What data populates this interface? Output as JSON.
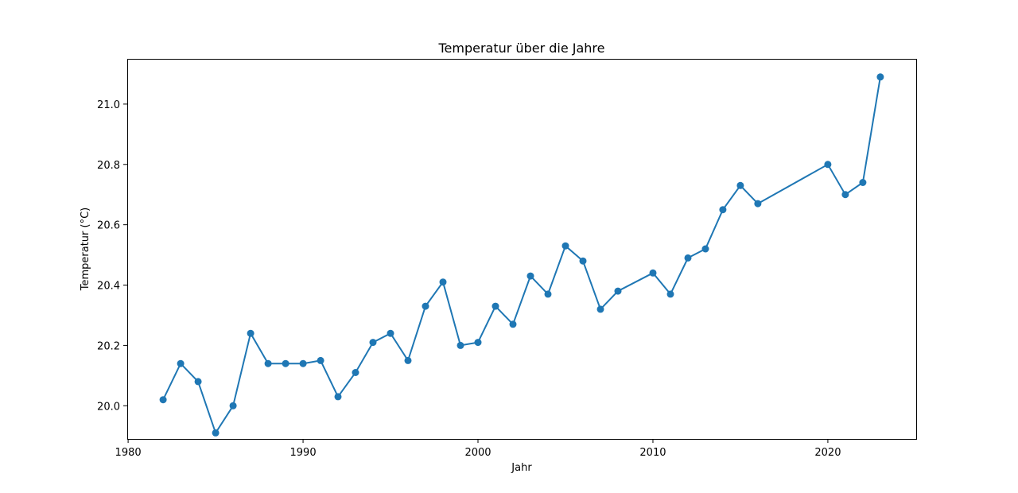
{
  "chart_data": {
    "type": "line",
    "title": "Temperatur über die Jahre",
    "xlabel": "Jahr",
    "ylabel": "Temperatur (°C)",
    "xlim": [
      1979.95,
      2025.05
    ],
    "ylim": [
      19.89,
      21.15
    ],
    "xticks": [
      1980,
      1990,
      2000,
      2010,
      2020
    ],
    "xtick_labels": [
      "1980",
      "1990",
      "2000",
      "2010",
      "2020"
    ],
    "yticks": [
      20.0,
      20.2,
      20.4,
      20.6,
      20.8,
      21.0
    ],
    "ytick_labels": [
      "20.0",
      "20.2",
      "20.4",
      "20.6",
      "20.8",
      "21.0"
    ],
    "grid": false,
    "color": "#1f77b4",
    "marker": "circle",
    "x": [
      1982,
      1983,
      1984,
      1985,
      1986,
      1987,
      1988,
      1989,
      1990,
      1991,
      1992,
      1993,
      1994,
      1995,
      1996,
      1997,
      1998,
      1999,
      2000,
      2001,
      2002,
      2003,
      2004,
      2005,
      2006,
      2007,
      2008,
      2010,
      2011,
      2012,
      2013,
      2014,
      2015,
      2016,
      2020,
      2021,
      2022,
      2023
    ],
    "values": [
      20.02,
      20.14,
      20.08,
      19.91,
      20.0,
      20.24,
      20.14,
      20.14,
      20.14,
      20.15,
      20.03,
      20.11,
      20.21,
      20.24,
      20.15,
      20.33,
      20.41,
      20.2,
      20.21,
      20.33,
      20.27,
      20.43,
      20.37,
      20.53,
      20.48,
      20.32,
      20.38,
      20.44,
      20.37,
      20.49,
      20.52,
      20.65,
      20.73,
      20.67,
      20.8,
      20.7,
      20.74,
      21.09
    ]
  }
}
